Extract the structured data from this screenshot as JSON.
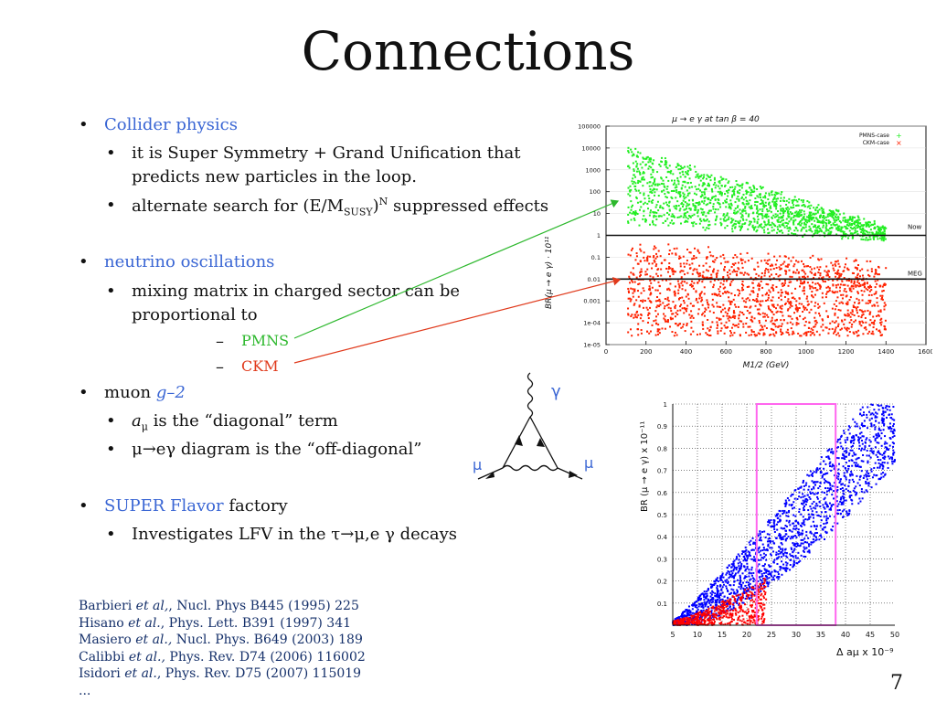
{
  "slide": {
    "title": "Connections",
    "page_number": "7",
    "bullets": [
      {
        "label": "Collider physics",
        "sub": [
          {
            "line1": "it is Super Symmetry + Grand Unification that",
            "line2": "predicts new particles in the loop."
          },
          {
            "pre": "alternate search for (E/M",
            "sub": "SUSY",
            "mid": ")",
            "sup": "N",
            "post": " suppressed effects"
          }
        ]
      },
      {
        "label": "neutrino oscillations",
        "sub": [
          {
            "line1": "mixing matrix in charged sector can be",
            "line2": "proportional to"
          }
        ],
        "dashes": [
          "PMNS",
          "CKM"
        ]
      },
      {
        "pre": "muon ",
        "label": "g–2",
        "sub": [
          {
            "a": "a",
            "mu": "μ",
            "post": " is the “diagonal” term"
          },
          {
            "text": "μ→eγ diagram is the “off-diagonal”"
          }
        ]
      },
      {
        "label": "SUPER Flavor",
        "post": " factory",
        "sub": [
          {
            "text": "Investigates LFV in the τ→μ,e γ decays"
          }
        ]
      }
    ],
    "references": [
      {
        "pre": "Barbieri ",
        "em": "et al,",
        "post": ", Nucl. Phys B445 (1995) 225"
      },
      {
        "pre": "Hisano ",
        "em": "et al.",
        "post": ", Phys. Lett. B391 (1997) 341"
      },
      {
        "pre": "Masiero ",
        "em": "et al.,",
        "post": " Nucl. Phys. B649 (2003) 189"
      },
      {
        "pre": "Calibbi ",
        "em": "et al.,",
        "post": "   Phys. Rev. D74 (2006) 116002"
      },
      {
        "pre": "Isidori ",
        "em": "et al.",
        "post": ", Phys. Rev. D75 (2007) 115019"
      },
      {
        "pre": "...",
        "em": "",
        "post": ""
      }
    ],
    "feynman": {
      "photon": "γ",
      "mu_left": "μ",
      "mu_right": "μ"
    }
  },
  "chart_data": [
    {
      "type": "scatter",
      "title": "μ → e γ at tan β = 40",
      "xlabel": "M1/2 (GeV)",
      "ylabel": "BR(μ → e γ) · 10¹¹",
      "yscale": "log",
      "xlim": [
        0,
        1600
      ],
      "ylim": [
        1e-05,
        100000
      ],
      "x_ticks": [
        "0",
        "200",
        "400",
        "600",
        "800",
        "1000",
        "1200",
        "1400",
        "1600"
      ],
      "y_ticks": [
        "1e-05",
        "1e-04",
        "0.001",
        "0.01",
        "0.1",
        "1",
        "10",
        "100",
        "1000",
        "10000",
        "100000"
      ],
      "reference_lines": [
        {
          "label": "Now",
          "y": 1
        },
        {
          "label": "MEG",
          "y": 0.01
        }
      ],
      "legend_position": "top-right",
      "series": [
        {
          "name": "PMNS-case",
          "color": "#22ee22",
          "x_range": [
            110,
            1400
          ],
          "y_approx": "bands from ~1 to ~10000"
        },
        {
          "name": "CKM-case",
          "color": "#ff2200",
          "x_range": [
            110,
            1400
          ],
          "y_approx": "bands from ~1e-05 to ~1"
        }
      ]
    },
    {
      "type": "scatter",
      "xlabel": "Δ aμ x 10⁻⁹",
      "ylabel": "BR (μ → e γ) x 10⁻¹¹",
      "xlim": [
        5,
        50
      ],
      "ylim": [
        0,
        1
      ],
      "x_ticks": [
        "5",
        "10",
        "15",
        "20",
        "25",
        "30",
        "35",
        "40",
        "45",
        "50"
      ],
      "y_ticks": [
        "0.1",
        "0.2",
        "0.3",
        "0.4",
        "0.5",
        "0.6",
        "0.7",
        "0.8",
        "0.9",
        "1"
      ],
      "grid": true,
      "highlight_box": {
        "x": [
          22,
          38
        ],
        "y": [
          0,
          1
        ],
        "color": "#ff66ee"
      },
      "series": [
        {
          "color": "#0000ff",
          "x_range": [
            5,
            50
          ],
          "y_approx": "rising band 0 to 1"
        },
        {
          "color": "#ff0000",
          "x_range": [
            5,
            24
          ],
          "y_approx": "rising band 0 to 0.2"
        }
      ]
    }
  ]
}
